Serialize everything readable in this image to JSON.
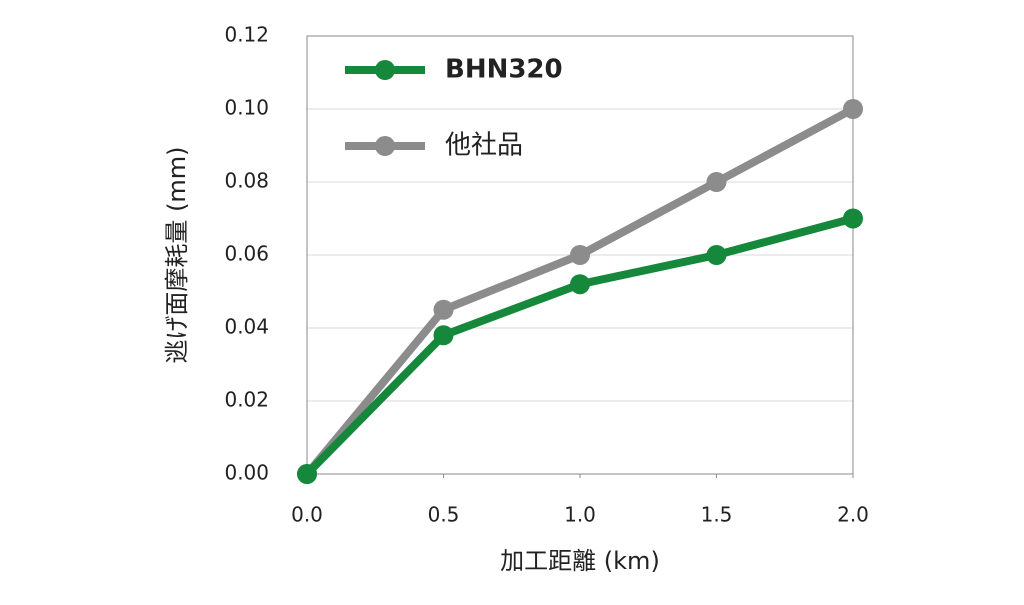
{
  "chart_data": {
    "type": "line",
    "xlabel": "加工距離 (km)",
    "ylabel": "逃げ面摩耗量 (mm)",
    "x": [
      0,
      0.5,
      1,
      1.5,
      2
    ],
    "series": [
      {
        "name": "BHN320",
        "color": "#15883c",
        "values": [
          0,
          0.038,
          0.052,
          0.06,
          0.07
        ]
      },
      {
        "name": "他社品",
        "color": "#8c8c8c",
        "values": [
          0,
          0.045,
          0.06,
          0.08,
          0.1
        ]
      }
    ],
    "xlim": [
      0,
      2
    ],
    "xticks": [
      {
        "value": 0,
        "label": "0.0"
      },
      0.5,
      {
        "value": 1,
        "label": "1.0"
      },
      1.5,
      {
        "value": 2,
        "label": "2.0"
      }
    ],
    "ylim": [
      0,
      0.12
    ],
    "yticks": [
      {
        "value": 0,
        "label": "0.00"
      },
      0.02,
      0.04,
      0.06,
      0.08,
      {
        "value": 0.1,
        "label": "0.10"
      },
      0.12
    ],
    "grid": true,
    "legend": "upper left"
  }
}
